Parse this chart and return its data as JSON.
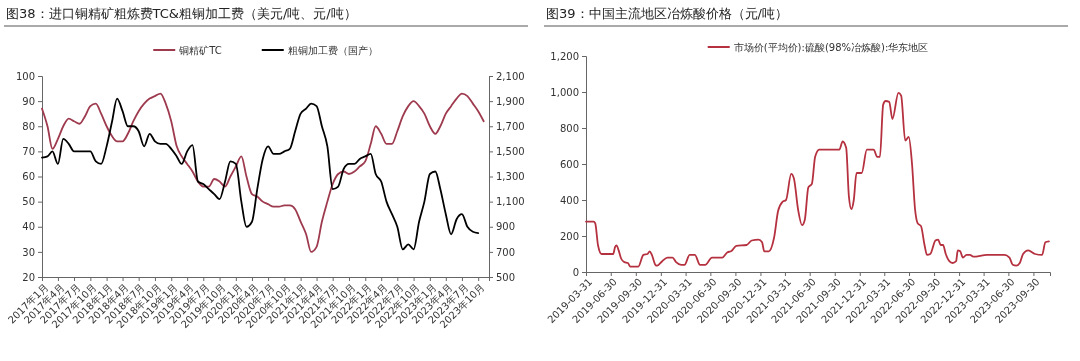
{
  "chart_data": [
    {
      "type": "line",
      "title": "图38：进口铜精矿粗炼费TC&粗铜加工费（美元/吨、元/吨）",
      "legend": "top",
      "xlim": [
        "2017-01",
        "2023-12"
      ],
      "xticks": [
        {
          "value": "2017-01",
          "label": "2017年1月"
        },
        {
          "value": "2017-04",
          "label": "2017年4月"
        },
        {
          "value": "2017-07",
          "label": "2017年7月"
        },
        {
          "value": "2017-10",
          "label": "2017年10月"
        },
        {
          "value": "2018-01",
          "label": "2018年1月"
        },
        {
          "value": "2018-04",
          "label": "2018年4月"
        },
        {
          "value": "2018-07",
          "label": "2018年7月"
        },
        {
          "value": "2018-10",
          "label": "2018年10月"
        },
        {
          "value": "2019-01",
          "label": "2019年1月"
        },
        {
          "value": "2019-04",
          "label": "2019年4月"
        },
        {
          "value": "2019-07",
          "label": "2019年7月"
        },
        {
          "value": "2019-10",
          "label": "2019年10月"
        },
        {
          "value": "2020-01",
          "label": "2020年1月"
        },
        {
          "value": "2020-04",
          "label": "2020年4月"
        },
        {
          "value": "2020-07",
          "label": "2020年7月"
        },
        {
          "value": "2020-10",
          "label": "2020年10月"
        },
        {
          "value": "2021-01",
          "label": "2021年1月"
        },
        {
          "value": "2021-04",
          "label": "2021年4月"
        },
        {
          "value": "2021-07",
          "label": "2021年7月"
        },
        {
          "value": "2021-10",
          "label": "2021年10月"
        },
        {
          "value": "2022-01",
          "label": "2022年1月"
        },
        {
          "value": "2022-04",
          "label": "2022年4月"
        },
        {
          "value": "2022-07",
          "label": "2022年7月"
        },
        {
          "value": "2022-10",
          "label": "2022年10月"
        },
        {
          "value": "2023-01",
          "label": "2023年1月"
        },
        {
          "value": "2023-04",
          "label": "2023年4月"
        },
        {
          "value": "2023-07",
          "label": "2023年7月"
        },
        {
          "value": "2023-10",
          "label": "2023年10月"
        }
      ],
      "x": [
        "2017-01",
        "2017-02",
        "2017-03",
        "2017-04",
        "2017-05",
        "2017-06",
        "2017-07",
        "2017-08",
        "2017-09",
        "2017-10",
        "2017-11",
        "2017-12",
        "2018-01",
        "2018-02",
        "2018-03",
        "2018-04",
        "2018-05",
        "2018-06",
        "2018-07",
        "2018-08",
        "2018-09",
        "2018-10",
        "2018-11",
        "2018-12",
        "2019-01",
        "2019-02",
        "2019-03",
        "2019-04",
        "2019-05",
        "2019-06",
        "2019-07",
        "2019-08",
        "2019-09",
        "2019-10",
        "2019-11",
        "2019-12",
        "2020-01",
        "2020-02",
        "2020-03",
        "2020-04",
        "2020-05",
        "2020-06",
        "2020-07",
        "2020-08",
        "2020-09",
        "2020-10",
        "2020-11",
        "2020-12",
        "2021-01",
        "2021-02",
        "2021-03",
        "2021-04",
        "2021-05",
        "2021-06",
        "2021-07",
        "2021-08",
        "2021-09",
        "2021-10",
        "2021-11",
        "2021-12",
        "2022-01",
        "2022-02",
        "2022-03",
        "2022-04",
        "2022-05",
        "2022-06",
        "2022-07",
        "2022-08",
        "2022-09",
        "2022-10",
        "2022-11",
        "2022-12",
        "2023-01",
        "2023-02",
        "2023-03",
        "2023-04",
        "2023-05",
        "2023-06",
        "2023-07",
        "2023-08",
        "2023-09",
        "2023-10",
        "2023-11"
      ],
      "ylim": [
        20,
        100
      ],
      "yticks": [
        20,
        30,
        40,
        50,
        60,
        70,
        80,
        90,
        100
      ],
      "y2lim": [
        500,
        2100
      ],
      "y2ticks": [
        500,
        700,
        900,
        {
          "value": 1100,
          "label": "1,100"
        },
        {
          "value": 1300,
          "label": "1,300"
        },
        {
          "value": 1500,
          "label": "1,500"
        },
        {
          "value": 1700,
          "label": "1,700"
        },
        {
          "value": 1900,
          "label": "1,900"
        },
        {
          "value": 2100,
          "label": "2,100"
        }
      ],
      "series": [
        {
          "name": "铜精矿TC",
          "color": "#9e3a4e",
          "values": [
            87,
            80,
            71,
            75,
            80,
            83,
            82,
            81,
            84,
            88,
            89,
            85,
            80,
            76,
            74,
            74,
            77,
            82,
            86,
            89,
            91,
            92,
            93,
            89,
            82,
            72,
            68,
            65,
            62,
            58,
            56,
            56,
            59,
            58,
            56,
            60,
            64,
            68,
            60,
            53,
            52,
            50,
            49,
            48,
            48,
            48.5,
            48.5,
            47,
            42,
            37,
            30,
            32,
            42,
            50,
            57,
            61,
            62,
            61,
            62,
            64,
            66,
            73,
            80,
            77,
            73,
            73,
            78,
            84,
            88,
            90,
            88,
            85,
            80,
            77,
            80,
            85,
            88,
            91,
            93,
            92,
            89,
            86,
            82
          ]
        },
        {
          "name": "粗铜加工费（国产）",
          "color": "#000000",
          "axis": "y2",
          "values": [
            1450,
            1460,
            1500,
            1400,
            1600,
            1560,
            1500,
            1500,
            1500,
            1500,
            1420,
            1400,
            1540,
            1740,
            1920,
            1820,
            1700,
            1700,
            1660,
            1540,
            1640,
            1580,
            1560,
            1560,
            1520,
            1460,
            1400,
            1500,
            1550,
            1260,
            1240,
            1200,
            1160,
            1120,
            1260,
            1420,
            1400,
            1100,
            900,
            940,
            1200,
            1440,
            1540,
            1480,
            1480,
            1500,
            1520,
            1660,
            1800,
            1840,
            1880,
            1860,
            1700,
            1540,
            1200,
            1220,
            1360,
            1400,
            1400,
            1440,
            1460,
            1480,
            1320,
            1260,
            1100,
            1000,
            900,
            720,
            760,
            720,
            940,
            1100,
            1320,
            1340,
            1200,
            1000,
            840,
            960,
            1000,
            900,
            860,
            850,
            null
          ]
        }
      ]
    },
    {
      "type": "line",
      "title": "图39：中国主流地区冶炼酸价格（元/吨）",
      "legend": "top",
      "xlim": [
        "2019-03-31",
        "2023-11-30"
      ],
      "xticks": [
        "2019-03-31",
        "2019-06-30",
        "2019-09-30",
        "2019-12-31",
        "2020-03-31",
        "2020-06-30",
        "2020-09-30",
        "2020-12-31",
        "2021-03-31",
        "2021-06-30",
        "2021-09-30",
        "2021-12-31",
        "2022-03-31",
        "2022-06-30",
        "2022-09-30",
        "2022-12-31",
        "2023-03-31",
        "2023-06-30",
        "2023-09-30"
      ],
      "ylim": [
        0,
        1200
      ],
      "yticks": [
        0,
        200,
        400,
        600,
        800,
        {
          "value": 1000,
          "label": "1,000"
        },
        {
          "value": 1200,
          "label": "1,200"
        }
      ],
      "x": [
        "2019-03-31",
        "2019-04-28",
        "2019-05-04",
        "2019-05-14",
        "2019-05-27",
        "2019-06-30",
        "2019-07-09",
        "2019-07-16",
        "2019-07-21",
        "2019-07-29",
        "2019-08-07",
        "2019-08-19",
        "2019-09-01",
        "2019-09-10",
        "2019-10-03",
        "2019-10-09",
        "2019-10-28",
        "2019-11-12",
        "2019-11-20",
        "2019-11-28",
        "2019-12-11",
        "2019-12-17",
        "2020-01-05",
        "2020-01-24",
        "2020-02-12",
        "2020-02-25",
        "2020-03-15",
        "2020-03-27",
        "2020-04-15",
        "2020-05-04",
        "2020-05-23",
        "2020-06-11",
        "2020-07-06",
        "2020-08-13",
        "2020-09-01",
        "2020-09-14",
        "2020-10-03",
        "2020-11-10",
        "2020-11-29",
        "2020-12-24",
        "2021-01-06",
        "2021-01-14",
        "2021-01-31",
        "2021-02-19",
        "2021-03-06",
        "2021-03-22",
        "2021-04-04",
        "2021-04-23",
        "2021-05-03",
        "2021-05-18",
        "2021-06-02",
        "2021-06-12",
        "2021-06-25",
        "2021-07-08",
        "2021-07-20",
        "2021-08-04",
        "2021-08-27",
        "2021-10-17",
        "2021-10-29",
        "2021-11-11",
        "2021-11-21",
        "2021-11-30",
        "2021-12-09",
        "2021-12-19",
        "2022-01-07",
        "2022-01-26",
        "2022-02-20",
        "2022-03-05",
        "2022-03-15",
        "2022-03-27",
        "2022-04-05",
        "2022-04-18",
        "2022-04-30",
        "2022-05-22",
        "2022-06-01",
        "2022-06-16",
        "2022-06-29",
        "2022-07-11",
        "2022-07-22",
        "2022-08-01",
        "2022-08-13",
        "2022-08-26",
        "2022-09-04",
        "2022-09-16",
        "2022-10-05",
        "2022-10-15",
        "2022-10-24",
        "2022-11-02",
        "2022-11-12",
        "2022-11-25",
        "2022-12-07",
        "2022-12-20",
        "2022-12-26",
        "2023-01-04",
        "2023-01-14",
        "2023-01-27",
        "2023-02-09",
        "2023-02-21",
        "2023-04-13",
        "2023-06-15",
        "2023-07-04",
        "2023-07-16",
        "2023-07-29",
        "2023-08-11",
        "2023-08-23",
        "2023-09-11",
        "2023-10-06",
        "2023-11-01",
        "2023-11-13",
        "2023-11-26"
      ],
      "series": [
        {
          "name": "市场价(平均价):硫酸(98%冶炼酸):华东地区",
          "color": "#b5313f",
          "values": [
            280,
            280,
            270,
            150,
            100,
            100,
            100,
            140,
            148,
            120,
            75,
            55,
            50,
            30,
            30,
            30,
            95,
            100,
            115,
            95,
            40,
            35,
            60,
            80,
            80,
            55,
            40,
            40,
            95,
            95,
            40,
            40,
            80,
            80,
            110,
            115,
            145,
            150,
            175,
            180,
            165,
            115,
            115,
            190,
            340,
            390,
            400,
            545,
            520,
            350,
            260,
            290,
            470,
            490,
            640,
            680,
            680,
            680,
            725,
            690,
            420,
            350,
            400,
            550,
            550,
            680,
            680,
            640,
            640,
            930,
            950,
            945,
            850,
            995,
            980,
            730,
            750,
            600,
            350,
            270,
            255,
            150,
            95,
            100,
            175,
            180,
            150,
            150,
            100,
            60,
            50,
            60,
            120,
            115,
            80,
            95,
            95,
            85,
            95,
            95,
            80,
            40,
            35,
            50,
            100,
            120,
            100,
            95,
            165,
            170
          ]
        }
      ]
    }
  ]
}
